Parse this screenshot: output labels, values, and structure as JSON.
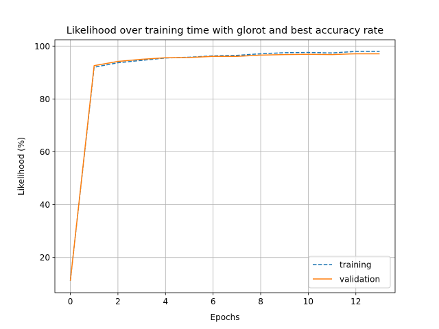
{
  "chart_data": {
    "type": "line",
    "title": "Likelihood over training time with glorot and best accuracy rate",
    "xlabel": "Epochs",
    "ylabel": "Likelihood (%)",
    "xlim": [
      -0.65,
      13.65
    ],
    "ylim": [
      6.7,
      102.4
    ],
    "xticks": [
      0,
      2,
      4,
      6,
      8,
      10,
      12
    ],
    "yticks": [
      20,
      40,
      60,
      80,
      100
    ],
    "grid": true,
    "legend_position": "lower right",
    "x": [
      0,
      1,
      2,
      3,
      4,
      5,
      6,
      7,
      8,
      9,
      10,
      11,
      12,
      13
    ],
    "series": [
      {
        "name": "training",
        "style": "dashed",
        "color": "#1f77b4",
        "values": [
          11.2,
          92.0,
          93.7,
          94.6,
          95.5,
          95.8,
          96.3,
          96.5,
          97.1,
          97.5,
          97.6,
          97.4,
          98.0,
          98.0
        ]
      },
      {
        "name": "validation",
        "style": "solid",
        "color": "#ff7f0e",
        "values": [
          11.2,
          92.6,
          94.2,
          95.0,
          95.6,
          95.7,
          96.1,
          96.1,
          96.6,
          96.8,
          96.9,
          96.8,
          97.1,
          97.1
        ]
      }
    ]
  }
}
